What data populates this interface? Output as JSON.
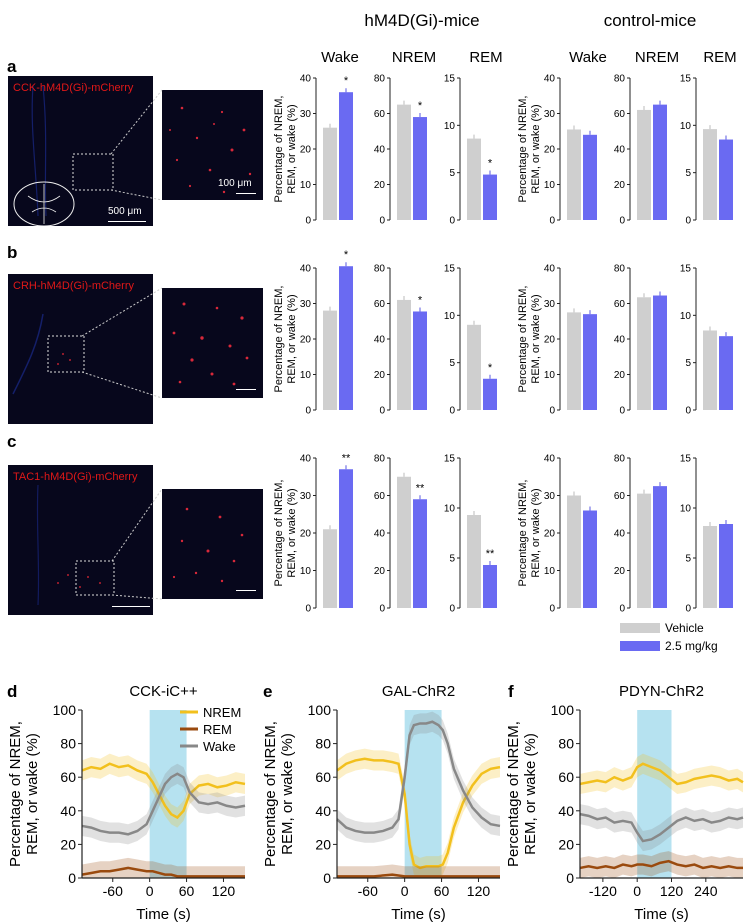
{
  "header": {
    "hm4d_title": "hM4D(Gi)-mice",
    "control_title": "control-mice"
  },
  "panel_letters": [
    "a",
    "b",
    "c",
    "d",
    "e",
    "f"
  ],
  "bar_col_titles": [
    "Wake",
    "NREM",
    "REM",
    "Wake",
    "NREM",
    "REM"
  ],
  "y_label_line1": "Percentage of NREM,",
  "y_label_line2": "REM, or wake (%)",
  "legend_bars": {
    "vehicle": "Vehicle",
    "dose": "2.5 mg/kg"
  },
  "colors": {
    "vehicle": "#cfcfcf",
    "dose": "#6a6af2",
    "nrem": "#f2c01d",
    "rem": "#9a4a0e",
    "wake": "#888888",
    "stim": "#b6e2f0"
  },
  "micrographs": [
    {
      "label": "CCK-hM4D(Gi)-mCherry",
      "scale_main": "500 μm",
      "scale_inset": "100 μm"
    },
    {
      "label": "CRH-hM4D(Gi)-mCherry",
      "scale_main": "",
      "scale_inset": ""
    },
    {
      "label": "TAC1-hM4D(Gi)-mCherry",
      "scale_main": "",
      "scale_inset": ""
    }
  ],
  "chart_data": [
    {
      "type": "bar",
      "panel": "a",
      "group": "hM4D(Gi)-mice",
      "title": "Wake",
      "categories": [
        "Vehicle",
        "2.5 mg/kg"
      ],
      "values": [
        26,
        36
      ],
      "sig": "*",
      "yticks": [
        0,
        10,
        20,
        30,
        40
      ],
      "ylim": [
        0,
        40
      ]
    },
    {
      "type": "bar",
      "panel": "a",
      "group": "hM4D(Gi)-mice",
      "title": "NREM",
      "categories": [
        "Vehicle",
        "2.5 mg/kg"
      ],
      "values": [
        65,
        58
      ],
      "sig": "*",
      "yticks": [
        0,
        20,
        40,
        60,
        80
      ],
      "ylim": [
        0,
        80
      ]
    },
    {
      "type": "bar",
      "panel": "a",
      "group": "hM4D(Gi)-mice",
      "title": "REM",
      "categories": [
        "Vehicle",
        "2.5 mg/kg"
      ],
      "values": [
        8.6,
        4.8
      ],
      "sig": "*",
      "yticks": [
        0,
        5,
        10,
        15
      ],
      "ylim": [
        0,
        15
      ]
    },
    {
      "type": "bar",
      "panel": "a",
      "group": "control-mice",
      "title": "Wake",
      "categories": [
        "Vehicle",
        "2.5 mg/kg"
      ],
      "values": [
        25.5,
        24
      ],
      "sig": "",
      "yticks": [
        0,
        10,
        20,
        30,
        40
      ],
      "ylim": [
        0,
        40
      ]
    },
    {
      "type": "bar",
      "panel": "a",
      "group": "control-mice",
      "title": "NREM",
      "categories": [
        "Vehicle",
        "2.5 mg/kg"
      ],
      "values": [
        62,
        65
      ],
      "sig": "",
      "yticks": [
        0,
        20,
        40,
        60,
        80
      ],
      "ylim": [
        0,
        80
      ]
    },
    {
      "type": "bar",
      "panel": "a",
      "group": "control-mice",
      "title": "REM",
      "categories": [
        "Vehicle",
        "2.5 mg/kg"
      ],
      "values": [
        9.6,
        8.5
      ],
      "sig": "",
      "yticks": [
        0,
        5,
        10,
        15
      ],
      "ylim": [
        0,
        15
      ]
    },
    {
      "type": "bar",
      "panel": "b",
      "group": "hM4D(Gi)-mice",
      "title": "Wake",
      "categories": [
        "Vehicle",
        "2.5 mg/kg"
      ],
      "values": [
        28,
        40.5
      ],
      "sig": "*",
      "yticks": [
        0,
        10,
        20,
        30,
        40
      ],
      "ylim": [
        0,
        40
      ]
    },
    {
      "type": "bar",
      "panel": "b",
      "group": "hM4D(Gi)-mice",
      "title": "NREM",
      "categories": [
        "Vehicle",
        "2.5 mg/kg"
      ],
      "values": [
        62,
        55.5
      ],
      "sig": "*",
      "yticks": [
        0,
        20,
        40,
        60,
        80
      ],
      "ylim": [
        0,
        80
      ]
    },
    {
      "type": "bar",
      "panel": "b",
      "group": "hM4D(Gi)-mice",
      "title": "REM",
      "categories": [
        "Vehicle",
        "2.5 mg/kg"
      ],
      "values": [
        9,
        3.3
      ],
      "sig": "*",
      "yticks": [
        0,
        5,
        10,
        15
      ],
      "ylim": [
        0,
        15
      ]
    },
    {
      "type": "bar",
      "panel": "b",
      "group": "control-mice",
      "title": "Wake",
      "categories": [
        "Vehicle",
        "2.5 mg/kg"
      ],
      "values": [
        27.5,
        27
      ],
      "sig": "",
      "yticks": [
        0,
        10,
        20,
        30,
        40
      ],
      "ylim": [
        0,
        40
      ]
    },
    {
      "type": "bar",
      "panel": "b",
      "group": "control-mice",
      "title": "NREM",
      "categories": [
        "Vehicle",
        "2.5 mg/kg"
      ],
      "values": [
        63.5,
        64.5
      ],
      "sig": "",
      "yticks": [
        0,
        20,
        40,
        60,
        80
      ],
      "ylim": [
        0,
        80
      ]
    },
    {
      "type": "bar",
      "panel": "b",
      "group": "control-mice",
      "title": "REM",
      "categories": [
        "Vehicle",
        "2.5 mg/kg"
      ],
      "values": [
        8.4,
        7.8
      ],
      "sig": "",
      "yticks": [
        0,
        5,
        10,
        15
      ],
      "ylim": [
        0,
        15
      ]
    },
    {
      "type": "bar",
      "panel": "c",
      "group": "hM4D(Gi)-mice",
      "title": "Wake",
      "categories": [
        "Vehicle",
        "2.5 mg/kg"
      ],
      "values": [
        21,
        37
      ],
      "sig": "**",
      "yticks": [
        0,
        10,
        20,
        30,
        40
      ],
      "ylim": [
        0,
        40
      ]
    },
    {
      "type": "bar",
      "panel": "c",
      "group": "hM4D(Gi)-mice",
      "title": "NREM",
      "categories": [
        "Vehicle",
        "2.5 mg/kg"
      ],
      "values": [
        70,
        58
      ],
      "sig": "**",
      "yticks": [
        0,
        20,
        40,
        60,
        80
      ],
      "ylim": [
        0,
        80
      ]
    },
    {
      "type": "bar",
      "panel": "c",
      "group": "hM4D(Gi)-mice",
      "title": "REM",
      "categories": [
        "Vehicle",
        "2.5 mg/kg"
      ],
      "values": [
        9.3,
        4.3
      ],
      "sig": "**",
      "yticks": [
        0,
        5,
        10,
        15
      ],
      "ylim": [
        0,
        15
      ]
    },
    {
      "type": "bar",
      "panel": "c",
      "group": "control-mice",
      "title": "Wake",
      "categories": [
        "Vehicle",
        "2.5 mg/kg"
      ],
      "values": [
        30,
        26
      ],
      "sig": "",
      "yticks": [
        0,
        10,
        20,
        30,
        40
      ],
      "ylim": [
        0,
        40
      ]
    },
    {
      "type": "bar",
      "panel": "c",
      "group": "control-mice",
      "title": "NREM",
      "categories": [
        "Vehicle",
        "2.5 mg/kg"
      ],
      "values": [
        61,
        65
      ],
      "sig": "",
      "yticks": [
        0,
        20,
        40,
        60,
        80
      ],
      "ylim": [
        0,
        80
      ]
    },
    {
      "type": "bar",
      "panel": "c",
      "group": "control-mice",
      "title": "REM",
      "categories": [
        "Vehicle",
        "2.5 mg/kg"
      ],
      "values": [
        8.2,
        8.4
      ],
      "sig": "",
      "yticks": [
        0,
        5,
        10,
        15
      ],
      "ylim": [
        0,
        15
      ]
    },
    {
      "type": "line",
      "panel": "d",
      "title": "CCK-iC++",
      "xlabel": "Time (s)",
      "xlim": [
        -110,
        155
      ],
      "xticks": [
        -60,
        0,
        60,
        120
      ],
      "ylim": [
        0,
        100
      ],
      "yticks": [
        0,
        20,
        40,
        60,
        80,
        100
      ],
      "stim": [
        0,
        60
      ],
      "legend": [
        "NREM",
        "REM",
        "Wake"
      ],
      "series": [
        {
          "name": "NREM",
          "x": [
            -110,
            -95,
            -80,
            -65,
            -50,
            -35,
            -20,
            -5,
            5,
            15,
            25,
            35,
            45,
            55,
            65,
            80,
            95,
            110,
            125,
            140,
            155
          ],
          "y": [
            64,
            66,
            65,
            68,
            66,
            67,
            64,
            62,
            57,
            50,
            43,
            38,
            36,
            40,
            50,
            55,
            56,
            54,
            55,
            57,
            56
          ]
        },
        {
          "name": "REM",
          "x": [
            -110,
            -95,
            -80,
            -65,
            -50,
            -35,
            -20,
            -5,
            5,
            15,
            25,
            35,
            45,
            55,
            65,
            80,
            95,
            110,
            125,
            140,
            155
          ],
          "y": [
            2,
            3,
            4,
            4,
            5,
            6,
            5,
            4,
            4,
            3,
            2,
            2,
            1,
            1,
            1,
            1,
            1,
            1,
            1,
            1,
            1
          ]
        },
        {
          "name": "Wake",
          "x": [
            -110,
            -95,
            -80,
            -65,
            -50,
            -35,
            -20,
            -5,
            5,
            15,
            25,
            35,
            45,
            55,
            65,
            80,
            95,
            110,
            125,
            140,
            155
          ],
          "y": [
            31,
            30,
            28,
            27,
            27,
            26,
            28,
            32,
            40,
            48,
            56,
            60,
            62,
            60,
            51,
            45,
            44,
            45,
            43,
            42,
            43
          ]
        }
      ]
    },
    {
      "type": "line",
      "panel": "e",
      "title": "GAL-ChR2",
      "xlabel": "Time (s)",
      "xlim": [
        -110,
        155
      ],
      "xticks": [
        -60,
        0,
        60,
        120
      ],
      "ylim": [
        0,
        100
      ],
      "yticks": [
        0,
        20,
        40,
        60,
        80,
        100
      ],
      "stim": [
        0,
        60
      ],
      "series": [
        {
          "name": "NREM",
          "x": [
            -110,
            -95,
            -80,
            -65,
            -50,
            -35,
            -20,
            -10,
            0,
            8,
            15,
            25,
            35,
            45,
            55,
            62,
            70,
            80,
            95,
            110,
            125,
            140,
            155
          ],
          "y": [
            64,
            68,
            70,
            71,
            70,
            70,
            69,
            68,
            50,
            20,
            8,
            6,
            7,
            7,
            7,
            8,
            15,
            30,
            45,
            55,
            62,
            65,
            66
          ]
        },
        {
          "name": "REM",
          "x": [
            -110,
            -80,
            -50,
            -20,
            0,
            30,
            60,
            90,
            120,
            155
          ],
          "y": [
            1,
            1,
            1,
            2,
            1,
            1,
            1,
            1,
            1,
            1
          ]
        },
        {
          "name": "Wake",
          "x": [
            -110,
            -95,
            -80,
            -65,
            -50,
            -35,
            -20,
            -10,
            0,
            8,
            15,
            25,
            35,
            45,
            55,
            62,
            70,
            80,
            95,
            110,
            125,
            140,
            155
          ],
          "y": [
            35,
            30,
            28,
            27,
            27,
            28,
            30,
            35,
            60,
            85,
            91,
            92,
            92,
            93,
            91,
            88,
            80,
            65,
            52,
            42,
            36,
            32,
            31
          ]
        }
      ]
    },
    {
      "type": "line",
      "panel": "f",
      "title": "PDYN-ChR2",
      "xlabel": "Time (s)",
      "xlim": [
        -200,
        370
      ],
      "xticks": [
        -120,
        0,
        120,
        240
      ],
      "ylim": [
        0,
        100
      ],
      "yticks": [
        0,
        20,
        40,
        60,
        80,
        100
      ],
      "stim": [
        0,
        120
      ],
      "series": [
        {
          "name": "NREM",
          "x": [
            -200,
            -170,
            -140,
            -110,
            -80,
            -50,
            -20,
            0,
            20,
            50,
            80,
            110,
            140,
            170,
            200,
            230,
            260,
            290,
            320,
            350,
            370
          ],
          "y": [
            56,
            57,
            58,
            57,
            60,
            58,
            60,
            66,
            68,
            66,
            64,
            60,
            56,
            57,
            59,
            60,
            61,
            60,
            58,
            59,
            57
          ]
        },
        {
          "name": "REM",
          "x": [
            -200,
            -170,
            -140,
            -110,
            -80,
            -50,
            -20,
            0,
            20,
            50,
            80,
            110,
            140,
            170,
            200,
            230,
            260,
            290,
            320,
            350,
            370
          ],
          "y": [
            6,
            7,
            6,
            7,
            6,
            8,
            7,
            8,
            8,
            7,
            9,
            10,
            8,
            7,
            8,
            6,
            7,
            6,
            7,
            6,
            6
          ]
        },
        {
          "name": "Wake",
          "x": [
            -200,
            -170,
            -140,
            -110,
            -80,
            -50,
            -20,
            0,
            20,
            50,
            80,
            110,
            140,
            170,
            200,
            230,
            260,
            290,
            320,
            350,
            370
          ],
          "y": [
            38,
            37,
            35,
            36,
            33,
            34,
            33,
            27,
            22,
            23,
            26,
            30,
            34,
            36,
            34,
            35,
            33,
            34,
            36,
            35,
            36
          ]
        }
      ]
    }
  ]
}
